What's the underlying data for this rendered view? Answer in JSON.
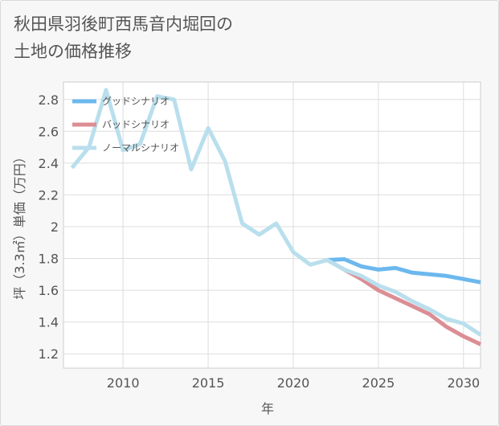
{
  "title_line1": "秋田県羽後町西馬音内堀回の",
  "title_line2": "土地の価格推移",
  "chart_data": {
    "type": "line",
    "xlabel": "年",
    "ylabel": "坪（3.3㎡）単価（万円）",
    "xlim": [
      2006.5,
      2031
    ],
    "ylim": [
      1.11,
      2.91
    ],
    "xticks": [
      2010,
      2015,
      2020,
      2025,
      2030
    ],
    "yticks": [
      1.2,
      1.4,
      1.6,
      1.8,
      2,
      2.2,
      2.4,
      2.6,
      2.8
    ],
    "grid": true,
    "legend_position": "top-left",
    "series": [
      {
        "name": "グッドシナリオ",
        "color": "#6cb8ee",
        "x": [
          2022,
          2023,
          2024,
          2025,
          2026,
          2027,
          2028,
          2029,
          2030,
          2031
        ],
        "y": [
          1.79,
          1.795,
          1.75,
          1.73,
          1.74,
          1.71,
          1.7,
          1.69,
          1.67,
          1.65
        ]
      },
      {
        "name": "バッドシナリオ",
        "color": "#dc8e95",
        "x": [
          2022,
          2023,
          2024,
          2025,
          2026,
          2027,
          2028,
          2029,
          2030,
          2031
        ],
        "y": [
          1.79,
          1.73,
          1.67,
          1.6,
          1.55,
          1.5,
          1.45,
          1.37,
          1.31,
          1.26
        ]
      },
      {
        "name": "ノーマルシナリオ",
        "color": "#b9dfed",
        "x": [
          2007,
          2008,
          2009,
          2010,
          2011,
          2012,
          2013,
          2014,
          2015,
          2016,
          2017,
          2018,
          2019,
          2020,
          2021,
          2022,
          2023,
          2024,
          2025,
          2026,
          2027,
          2028,
          2029,
          2030,
          2031
        ],
        "y": [
          2.37,
          2.5,
          2.86,
          2.48,
          2.52,
          2.82,
          2.8,
          2.36,
          2.62,
          2.41,
          2.02,
          1.95,
          2.02,
          1.84,
          1.76,
          1.79,
          1.73,
          1.69,
          1.63,
          1.59,
          1.53,
          1.48,
          1.42,
          1.39,
          1.32
        ]
      }
    ]
  }
}
